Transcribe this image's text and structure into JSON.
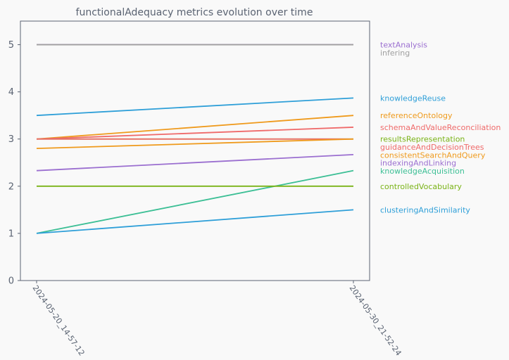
{
  "chart_data": {
    "type": "line",
    "title": "functionalAdequacy metrics evolution over time",
    "xlabel": "",
    "ylabel": "",
    "x": [
      "2024-05-20_14-57-12",
      "2024-05-30_21-52-24"
    ],
    "ylim": [
      0,
      5.5
    ],
    "yticks": [
      0,
      1,
      2,
      3,
      4,
      5
    ],
    "grid": false,
    "legend": "right, labels at line ends",
    "series": [
      {
        "name": "textAnalysis",
        "values": [
          5,
          5
        ],
        "color": "#9b6fd0"
      },
      {
        "name": "infering",
        "values": [
          5,
          5
        ],
        "color": "#a0a0a0"
      },
      {
        "name": "knowledgeReuse",
        "values": [
          3.5,
          3.87
        ],
        "color": "#2e9fd8"
      },
      {
        "name": "referenceOntology",
        "values": [
          3,
          3.5
        ],
        "color": "#ef9a1c"
      },
      {
        "name": "schemaAndValueReconciliation",
        "values": [
          3,
          3.25
        ],
        "color": "#ef6a6a"
      },
      {
        "name": "resultsRepresentation",
        "values": [
          3,
          3
        ],
        "color": "#7ab317"
      },
      {
        "name": "guidanceAndDecisionTrees",
        "values": [
          3,
          3
        ],
        "color": "#ef6a6a"
      },
      {
        "name": "consistentSearchAndQuery",
        "values": [
          2.8,
          3
        ],
        "color": "#ef9a1c"
      },
      {
        "name": "indexingAndLinking",
        "values": [
          2.33,
          2.67
        ],
        "color": "#9b6fd0"
      },
      {
        "name": "knowledgeAcquisition",
        "values": [
          1,
          2.33
        ],
        "color": "#3cbf95"
      },
      {
        "name": "controlledVocabulary",
        "values": [
          2,
          2
        ],
        "color": "#7ab317"
      },
      {
        "name": "clusteringAndSimilarity",
        "values": [
          1,
          1.5
        ],
        "color": "#2e9fd8"
      }
    ]
  }
}
